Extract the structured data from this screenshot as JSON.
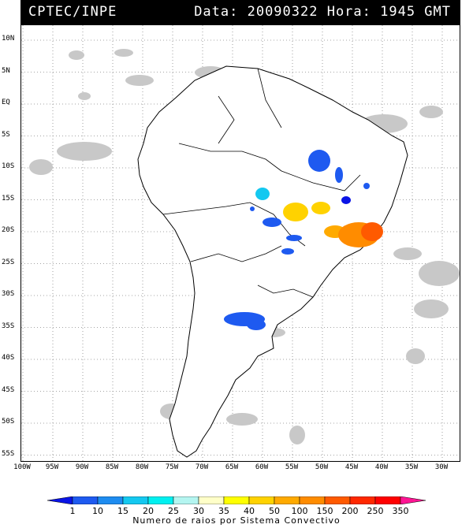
{
  "header": {
    "title_left": "CPTEC/INPE",
    "title_right": "Data: 20090322 Hora: 1945 GMT"
  },
  "map": {
    "lat_labels": [
      "10N",
      "5N",
      "EQ",
      "5S",
      "10S",
      "15S",
      "20S",
      "25S",
      "30S",
      "35S",
      "40S",
      "45S",
      "50S",
      "55S"
    ],
    "lon_labels": [
      "100W",
      "95W",
      "90W",
      "85W",
      "80W",
      "75W",
      "70W",
      "65W",
      "60W",
      "55W",
      "50W",
      "45W",
      "40W",
      "35W",
      "30W"
    ],
    "land_color": "#ffffff",
    "border_color": "#000000",
    "cloud_color": "#c8c8c8",
    "grid": "dotted"
  },
  "legend": {
    "ticks": [
      "1",
      "10",
      "15",
      "20",
      "25",
      "30",
      "35",
      "40",
      "50",
      "100",
      "150",
      "200",
      "250",
      "350"
    ],
    "colors": [
      "#0a14e6",
      "#1e5af0",
      "#1e8cf0",
      "#14c8f0",
      "#00f0f0",
      "#b4f5f0",
      "#ffffc8",
      "#ffff00",
      "#ffd200",
      "#ffaa00",
      "#ff8c00",
      "#ff5a00",
      "#ff2800",
      "#ff0000",
      "#ff1493"
    ],
    "caption": "Numero de raios por Sistema Convectivo"
  }
}
